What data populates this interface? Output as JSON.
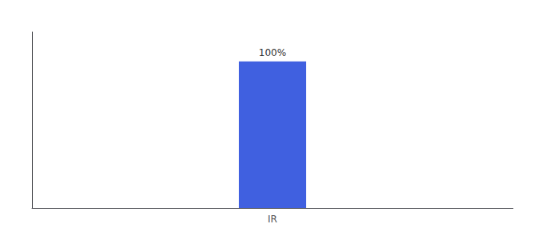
{
  "chart_data": {
    "type": "bar",
    "categories": [
      "IR"
    ],
    "values": [
      100
    ],
    "value_labels": [
      "100%"
    ],
    "data_labels": true,
    "color": "#4060e0",
    "ylim": [
      0,
      120
    ],
    "grid": false,
    "tick_labels": "x"
  }
}
